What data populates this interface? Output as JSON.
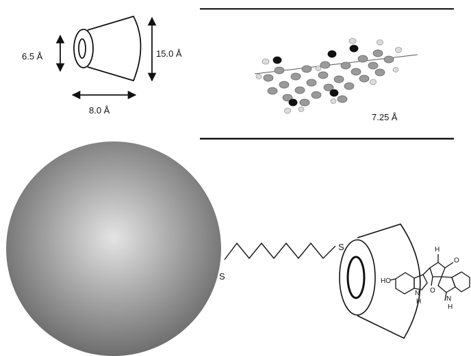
{
  "cavity_dimensions": {
    "inner_diameter": "6.5 Å",
    "outer_diameter": "15.0 Å",
    "height": "8.0 Å"
  },
  "layer_spacing": "7.25 Å",
  "sulfur_labels": {
    "surface": "S",
    "host": "S"
  },
  "guest_atom_labels": {
    "hydroxyl": "HO",
    "nh_lower_left": "N",
    "h_lower_left": "H",
    "h_top": "H",
    "o_top": "O",
    "nh_right": "N",
    "h_right": "H",
    "o_lower": "O"
  },
  "colors": {
    "line": "#111111",
    "atom_gray": "#9a9a9a",
    "atom_dark": "#111111",
    "atom_light": "#d6d6d6",
    "sphere_center": "#e4e4e4",
    "sphere_edge": "#6e6e6e"
  }
}
